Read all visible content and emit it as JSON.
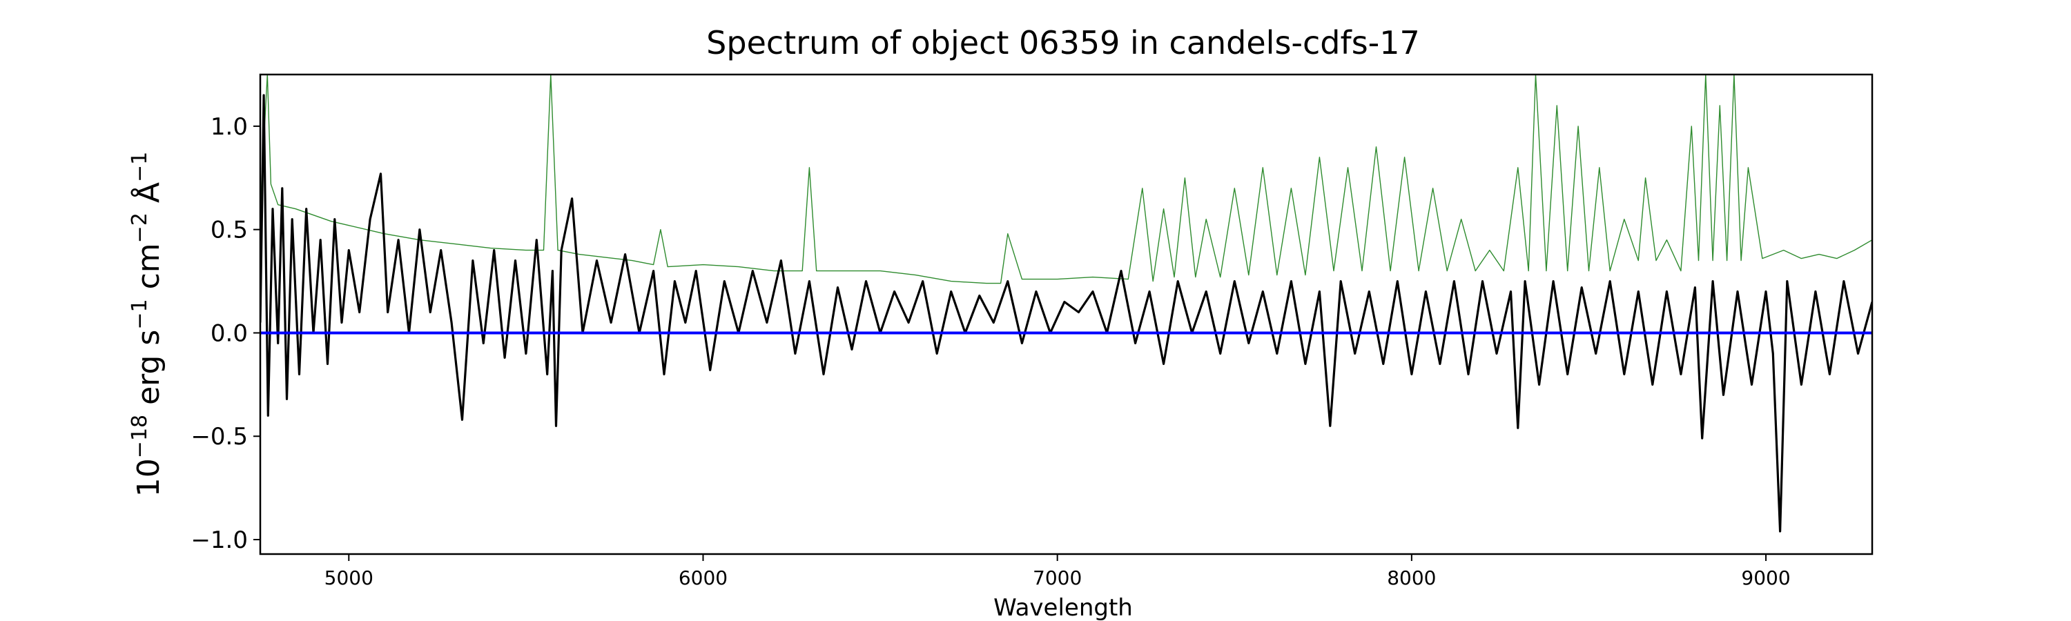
{
  "chart_data": {
    "type": "line",
    "title": "Spectrum of object 06359 in candels-cdfs-17",
    "xlabel": "Wavelength",
    "ylabel": {
      "base": "10",
      "exp": "−18",
      "unit1": " erg s",
      "exp1": "−1",
      "unit2": " cm",
      "exp2": "−2",
      "unit3": " Å",
      "exp3": "−1"
    },
    "xlim": [
      4750,
      9300
    ],
    "ylim": [
      -1.07,
      1.25
    ],
    "xticks": [
      5000,
      6000,
      7000,
      8000,
      9000
    ],
    "yticks": [
      -1.0,
      -0.5,
      0.0,
      0.5,
      1.0
    ],
    "ytick_labels": [
      "−1.0",
      "−0.5",
      "0.0",
      "0.5",
      "1.0"
    ],
    "grid": false,
    "colors": {
      "flux": "#000000",
      "noise": "#2e8b2e",
      "zero": "#0000ff"
    },
    "series": [
      {
        "key": "flux",
        "points": [
          [
            4750,
            0.05
          ],
          [
            4760,
            1.15
          ],
          [
            4772,
            -0.4
          ],
          [
            4785,
            0.6
          ],
          [
            4800,
            -0.05
          ],
          [
            4812,
            0.7
          ],
          [
            4825,
            -0.32
          ],
          [
            4840,
            0.55
          ],
          [
            4860,
            -0.2
          ],
          [
            4880,
            0.6
          ],
          [
            4900,
            0.0
          ],
          [
            4920,
            0.45
          ],
          [
            4940,
            -0.15
          ],
          [
            4960,
            0.55
          ],
          [
            4980,
            0.05
          ],
          [
            5000,
            0.4
          ],
          [
            5030,
            0.1
          ],
          [
            5060,
            0.55
          ],
          [
            5090,
            0.77
          ],
          [
            5110,
            0.1
          ],
          [
            5140,
            0.45
          ],
          [
            5170,
            0.0
          ],
          [
            5200,
            0.5
          ],
          [
            5230,
            0.1
          ],
          [
            5260,
            0.4
          ],
          [
            5290,
            0.05
          ],
          [
            5320,
            -0.42
          ],
          [
            5350,
            0.35
          ],
          [
            5380,
            -0.05
          ],
          [
            5410,
            0.4
          ],
          [
            5440,
            -0.12
          ],
          [
            5470,
            0.35
          ],
          [
            5500,
            -0.1
          ],
          [
            5530,
            0.45
          ],
          [
            5560,
            -0.2
          ],
          [
            5575,
            0.3
          ],
          [
            5585,
            -0.45
          ],
          [
            5600,
            0.4
          ],
          [
            5630,
            0.65
          ],
          [
            5660,
            0.0
          ],
          [
            5700,
            0.35
          ],
          [
            5740,
            0.05
          ],
          [
            5780,
            0.38
          ],
          [
            5820,
            0.0
          ],
          [
            5860,
            0.3
          ],
          [
            5890,
            -0.2
          ],
          [
            5920,
            0.25
          ],
          [
            5950,
            0.05
          ],
          [
            5980,
            0.3
          ],
          [
            6020,
            -0.18
          ],
          [
            6060,
            0.25
          ],
          [
            6100,
            0.0
          ],
          [
            6140,
            0.3
          ],
          [
            6180,
            0.05
          ],
          [
            6220,
            0.35
          ],
          [
            6260,
            -0.1
          ],
          [
            6300,
            0.25
          ],
          [
            6340,
            -0.2
          ],
          [
            6380,
            0.22
          ],
          [
            6420,
            -0.08
          ],
          [
            6460,
            0.25
          ],
          [
            6500,
            0.0
          ],
          [
            6540,
            0.2
          ],
          [
            6580,
            0.05
          ],
          [
            6620,
            0.25
          ],
          [
            6660,
            -0.1
          ],
          [
            6700,
            0.2
          ],
          [
            6740,
            0.0
          ],
          [
            6780,
            0.18
          ],
          [
            6820,
            0.05
          ],
          [
            6860,
            0.25
          ],
          [
            6900,
            -0.05
          ],
          [
            6940,
            0.2
          ],
          [
            6980,
            0.0
          ],
          [
            7020,
            0.15
          ],
          [
            7060,
            0.1
          ],
          [
            7100,
            0.2
          ],
          [
            7140,
            0.0
          ],
          [
            7180,
            0.3
          ],
          [
            7220,
            -0.05
          ],
          [
            7260,
            0.2
          ],
          [
            7300,
            -0.15
          ],
          [
            7340,
            0.25
          ],
          [
            7380,
            0.0
          ],
          [
            7420,
            0.2
          ],
          [
            7460,
            -0.1
          ],
          [
            7500,
            0.25
          ],
          [
            7540,
            -0.05
          ],
          [
            7580,
            0.2
          ],
          [
            7620,
            -0.1
          ],
          [
            7660,
            0.25
          ],
          [
            7700,
            -0.15
          ],
          [
            7740,
            0.2
          ],
          [
            7770,
            -0.45
          ],
          [
            7800,
            0.25
          ],
          [
            7840,
            -0.1
          ],
          [
            7880,
            0.2
          ],
          [
            7920,
            -0.15
          ],
          [
            7960,
            0.25
          ],
          [
            8000,
            -0.2
          ],
          [
            8040,
            0.2
          ],
          [
            8080,
            -0.15
          ],
          [
            8120,
            0.25
          ],
          [
            8160,
            -0.2
          ],
          [
            8200,
            0.25
          ],
          [
            8240,
            -0.1
          ],
          [
            8280,
            0.2
          ],
          [
            8300,
            -0.46
          ],
          [
            8320,
            0.25
          ],
          [
            8360,
            -0.25
          ],
          [
            8400,
            0.25
          ],
          [
            8440,
            -0.2
          ],
          [
            8480,
            0.22
          ],
          [
            8520,
            -0.1
          ],
          [
            8560,
            0.25
          ],
          [
            8600,
            -0.2
          ],
          [
            8640,
            0.2
          ],
          [
            8680,
            -0.25
          ],
          [
            8720,
            0.2
          ],
          [
            8760,
            -0.2
          ],
          [
            8800,
            0.22
          ],
          [
            8820,
            -0.51
          ],
          [
            8850,
            0.25
          ],
          [
            8880,
            -0.3
          ],
          [
            8920,
            0.2
          ],
          [
            8960,
            -0.25
          ],
          [
            9000,
            0.2
          ],
          [
            9020,
            -0.1
          ],
          [
            9040,
            -0.96
          ],
          [
            9060,
            0.25
          ],
          [
            9100,
            -0.25
          ],
          [
            9140,
            0.2
          ],
          [
            9180,
            -0.2
          ],
          [
            9220,
            0.25
          ],
          [
            9260,
            -0.1
          ],
          [
            9300,
            0.15
          ]
        ]
      },
      {
        "key": "noise",
        "points": [
          [
            4750,
            0.6
          ],
          [
            4770,
            1.25
          ],
          [
            4780,
            0.72
          ],
          [
            4800,
            0.62
          ],
          [
            4850,
            0.6
          ],
          [
            4900,
            0.57
          ],
          [
            4950,
            0.54
          ],
          [
            5000,
            0.52
          ],
          [
            5100,
            0.48
          ],
          [
            5200,
            0.45
          ],
          [
            5300,
            0.43
          ],
          [
            5400,
            0.41
          ],
          [
            5500,
            0.4
          ],
          [
            5550,
            0.4
          ],
          [
            5570,
            1.25
          ],
          [
            5590,
            0.4
          ],
          [
            5650,
            0.38
          ],
          [
            5700,
            0.37
          ],
          [
            5800,
            0.35
          ],
          [
            5860,
            0.33
          ],
          [
            5880,
            0.5
          ],
          [
            5900,
            0.32
          ],
          [
            6000,
            0.33
          ],
          [
            6100,
            0.32
          ],
          [
            6200,
            0.3
          ],
          [
            6280,
            0.3
          ],
          [
            6300,
            0.8
          ],
          [
            6320,
            0.3
          ],
          [
            6400,
            0.3
          ],
          [
            6500,
            0.3
          ],
          [
            6600,
            0.28
          ],
          [
            6700,
            0.25
          ],
          [
            6800,
            0.24
          ],
          [
            6840,
            0.24
          ],
          [
            6860,
            0.48
          ],
          [
            6900,
            0.26
          ],
          [
            7000,
            0.26
          ],
          [
            7100,
            0.27
          ],
          [
            7200,
            0.26
          ],
          [
            7240,
            0.7
          ],
          [
            7270,
            0.25
          ],
          [
            7300,
            0.6
          ],
          [
            7330,
            0.27
          ],
          [
            7360,
            0.75
          ],
          [
            7390,
            0.27
          ],
          [
            7420,
            0.55
          ],
          [
            7460,
            0.27
          ],
          [
            7500,
            0.7
          ],
          [
            7540,
            0.28
          ],
          [
            7580,
            0.8
          ],
          [
            7620,
            0.28
          ],
          [
            7660,
            0.7
          ],
          [
            7700,
            0.28
          ],
          [
            7740,
            0.85
          ],
          [
            7780,
            0.3
          ],
          [
            7820,
            0.8
          ],
          [
            7860,
            0.3
          ],
          [
            7900,
            0.9
          ],
          [
            7940,
            0.3
          ],
          [
            7980,
            0.85
          ],
          [
            8020,
            0.3
          ],
          [
            8060,
            0.7
          ],
          [
            8100,
            0.3
          ],
          [
            8140,
            0.55
          ],
          [
            8180,
            0.3
          ],
          [
            8220,
            0.4
          ],
          [
            8260,
            0.3
          ],
          [
            8300,
            0.8
          ],
          [
            8330,
            0.3
          ],
          [
            8350,
            1.25
          ],
          [
            8380,
            0.3
          ],
          [
            8410,
            1.1
          ],
          [
            8440,
            0.3
          ],
          [
            8470,
            1.0
          ],
          [
            8500,
            0.3
          ],
          [
            8530,
            0.8
          ],
          [
            8560,
            0.3
          ],
          [
            8600,
            0.55
          ],
          [
            8640,
            0.35
          ],
          [
            8660,
            0.75
          ],
          [
            8690,
            0.35
          ],
          [
            8720,
            0.45
          ],
          [
            8760,
            0.3
          ],
          [
            8790,
            1.0
          ],
          [
            8810,
            0.35
          ],
          [
            8830,
            1.25
          ],
          [
            8850,
            0.35
          ],
          [
            8870,
            1.1
          ],
          [
            8890,
            0.35
          ],
          [
            8910,
            1.25
          ],
          [
            8930,
            0.35
          ],
          [
            8950,
            0.8
          ],
          [
            8990,
            0.36
          ],
          [
            9050,
            0.4
          ],
          [
            9100,
            0.36
          ],
          [
            9150,
            0.38
          ],
          [
            9200,
            0.36
          ],
          [
            9250,
            0.4
          ],
          [
            9300,
            0.45
          ]
        ]
      },
      {
        "key": "zero",
        "points": [
          [
            4750,
            0.0
          ],
          [
            9300,
            0.0
          ]
        ]
      }
    ]
  }
}
